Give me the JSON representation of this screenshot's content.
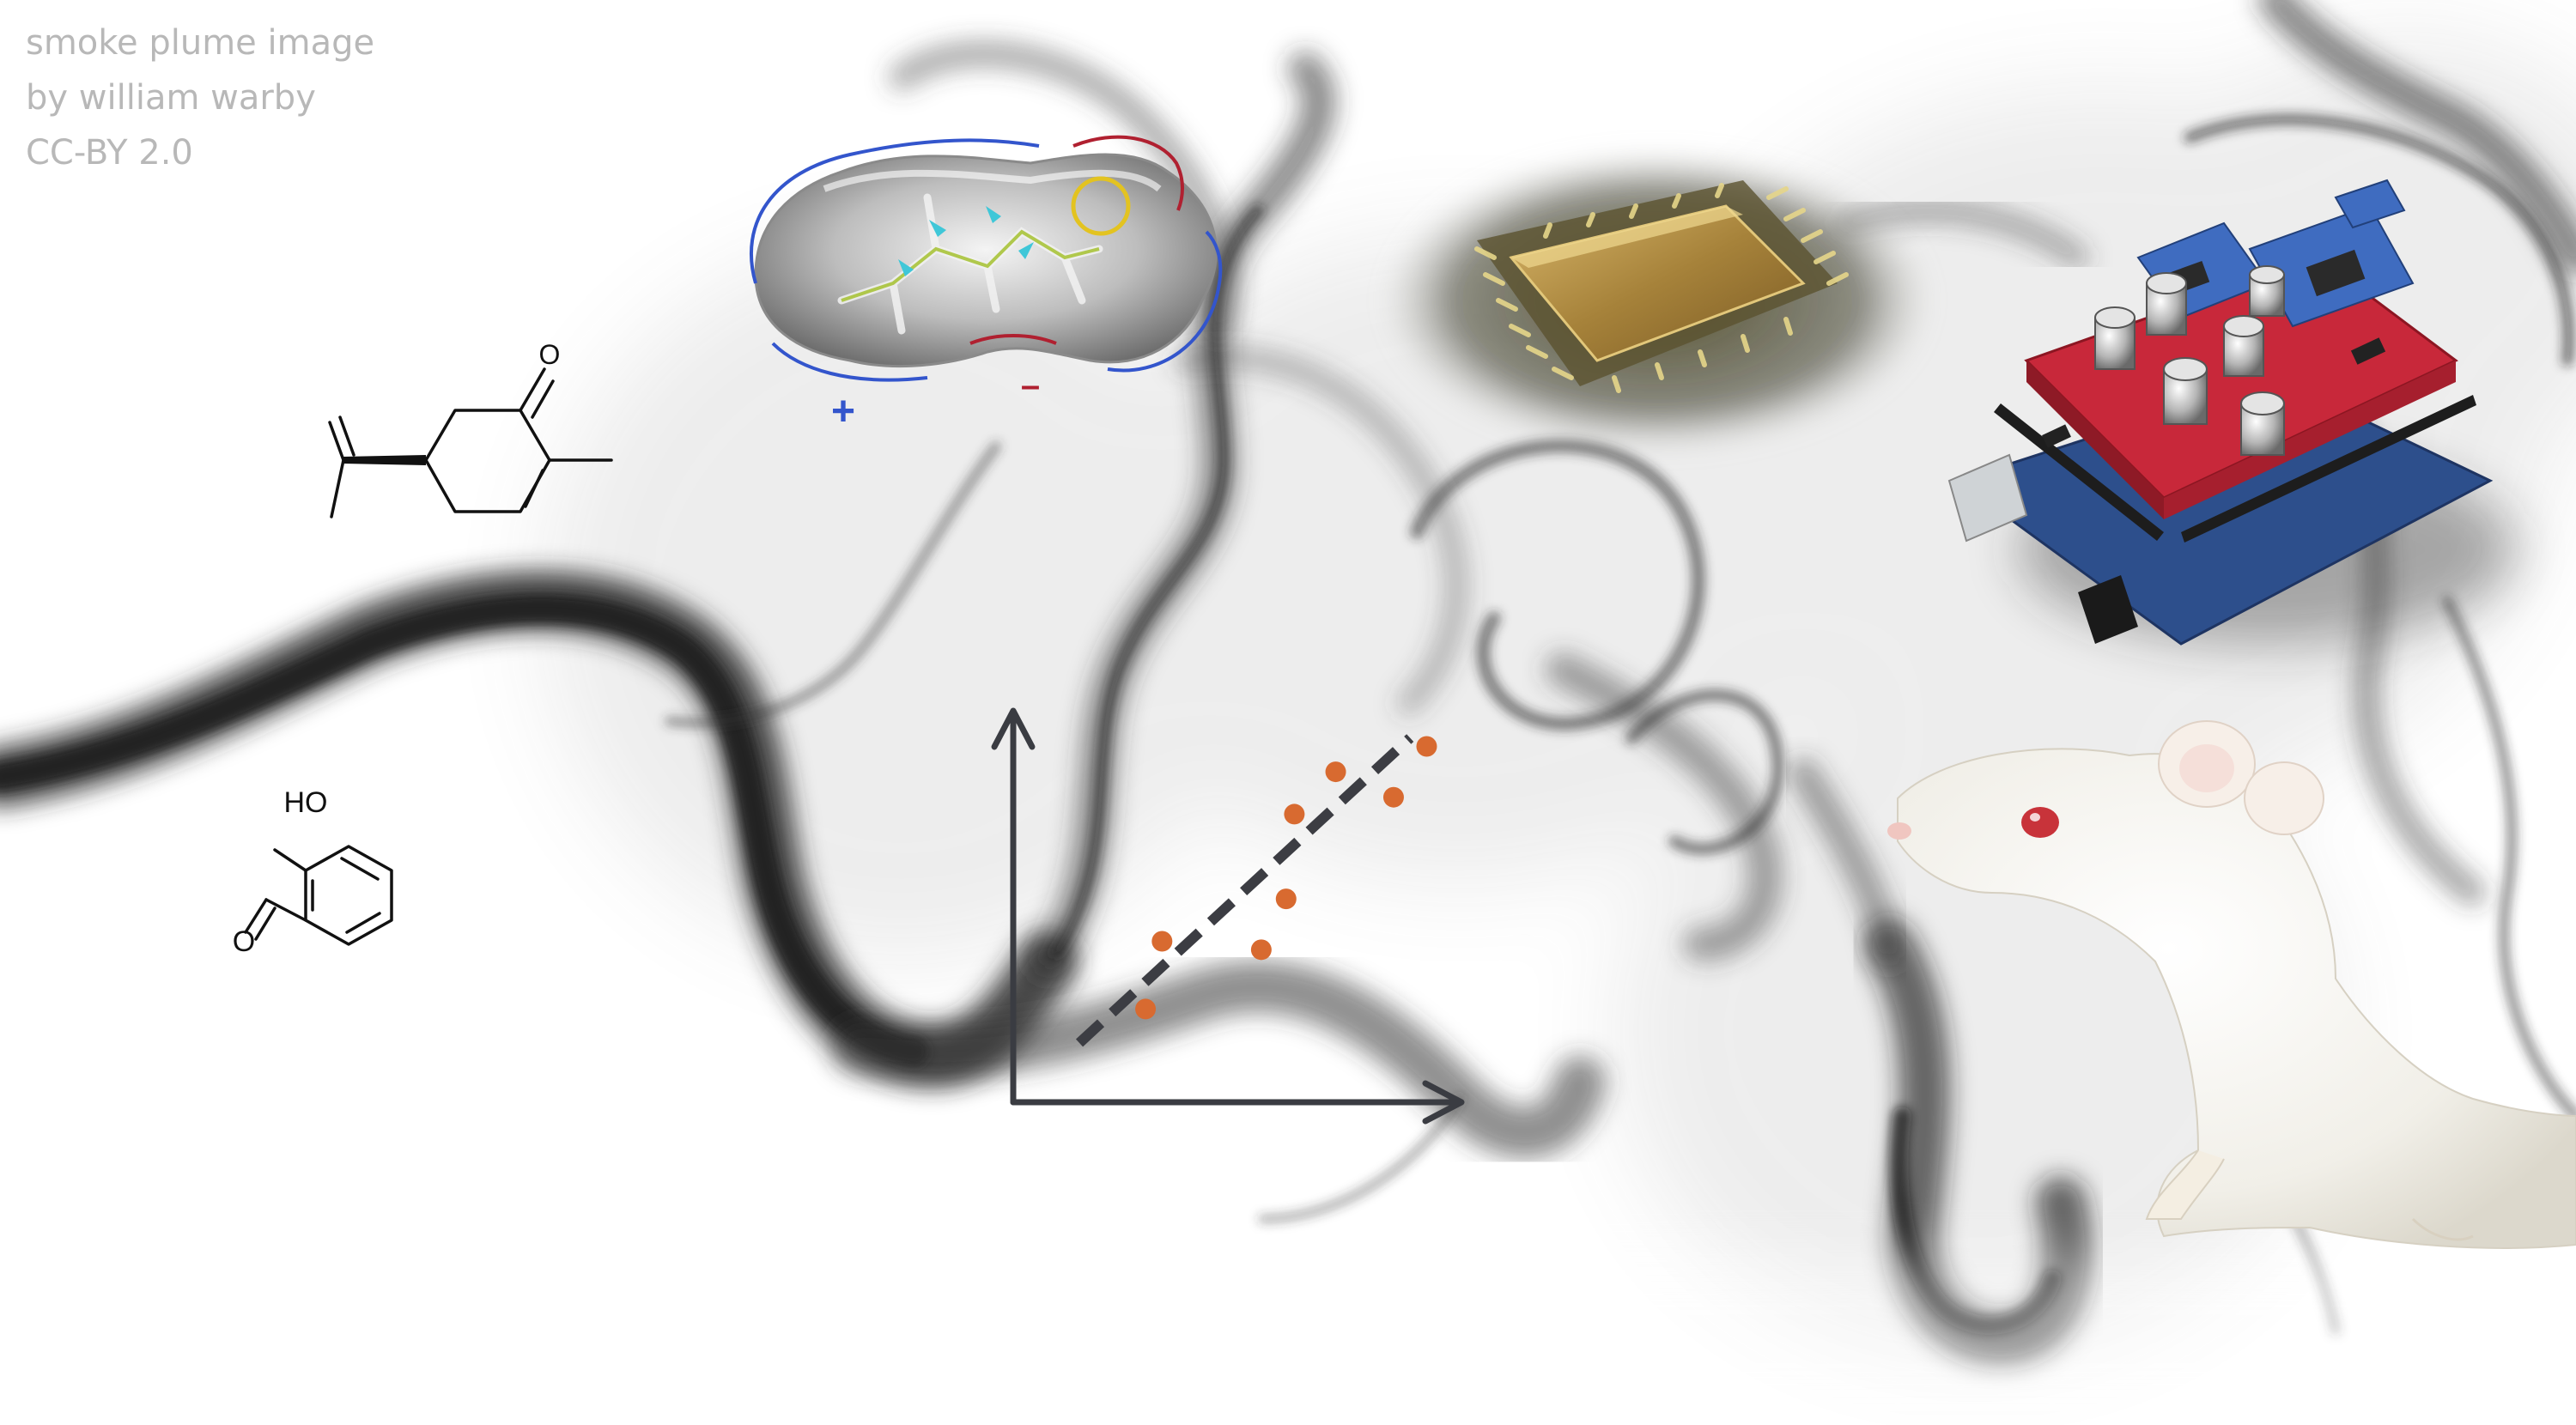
{
  "credit": {
    "line1": "smoke plume image",
    "line2": "by william warby",
    "line3": "CC-BY 2.0"
  },
  "colors": {
    "smoke": "#2b2b2b",
    "text_gray": "#b8b8b8",
    "axis": "#3a3c42",
    "scatter_point": "#d86a30",
    "positive": "#3355cc",
    "negative": "#b02030",
    "board_red": "#c8283a",
    "board_blue": "#3f6cc0",
    "chip_gold": "#b08838"
  },
  "labels": {
    "carvone_o": "O",
    "salicylaldehyde_ho": "HO",
    "salicylaldehyde_o": "O",
    "plus": "+",
    "minus": "–"
  },
  "icons": {
    "molecule_surface": "molecule-surface-icon",
    "chip": "microchip-icon",
    "board": "electronics-board-icon",
    "mouse": "lab-mouse-icon"
  },
  "chart_data": {
    "type": "scatter",
    "title": "",
    "xlabel": "",
    "ylabel": "",
    "points": [
      {
        "x": 1.6,
        "y": 1.1
      },
      {
        "x": 1.8,
        "y": 1.9
      },
      {
        "x": 3.0,
        "y": 1.8
      },
      {
        "x": 3.3,
        "y": 2.4
      },
      {
        "x": 3.4,
        "y": 3.4
      },
      {
        "x": 3.9,
        "y": 3.9
      },
      {
        "x": 4.6,
        "y": 3.6
      },
      {
        "x": 5.0,
        "y": 4.2
      }
    ],
    "trendline": {
      "x": [
        0.8,
        4.8
      ],
      "y": [
        0.7,
        4.3
      ],
      "style": "dashed"
    },
    "xlim": [
      0,
      5.4
    ],
    "ylim": [
      0,
      4.6
    ],
    "grid": false
  }
}
